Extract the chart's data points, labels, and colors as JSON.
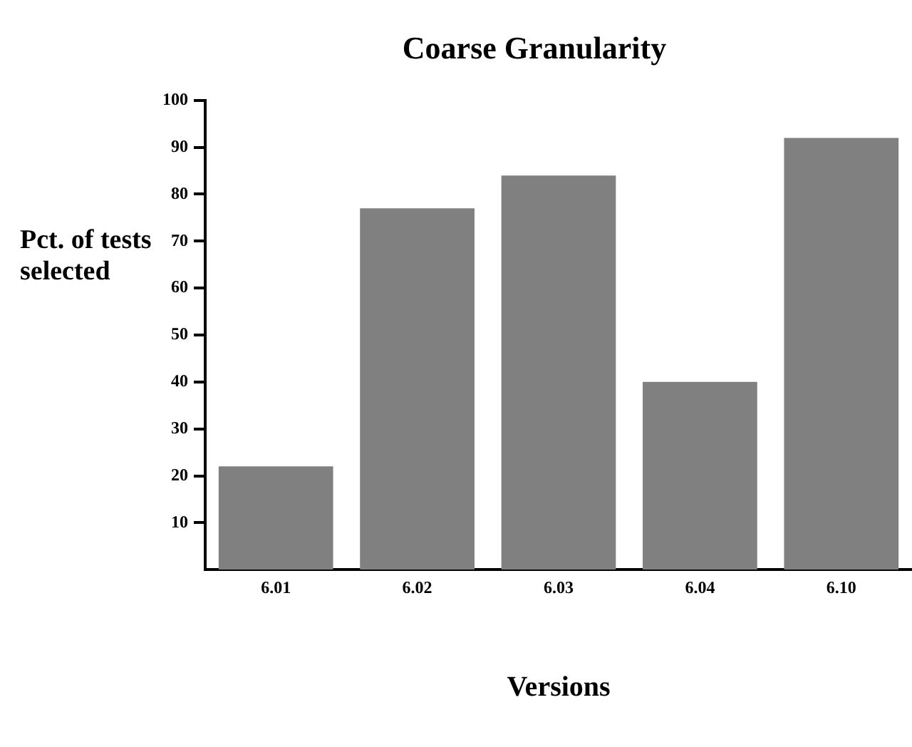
{
  "chart_data": {
    "type": "bar",
    "title": "Coarse Granularity",
    "xlabel": "Versions",
    "ylabel": "Pct. of tests selected",
    "categories": [
      "6.01",
      "6.02",
      "6.03",
      "6.04",
      "6.10"
    ],
    "values": [
      22,
      77,
      84,
      40,
      92
    ],
    "color": "#808080",
    "ylim": [
      0,
      100
    ],
    "yticks": [
      10,
      20,
      30,
      40,
      50,
      60,
      70,
      80,
      90,
      100
    ],
    "grid": false,
    "legend": false
  }
}
